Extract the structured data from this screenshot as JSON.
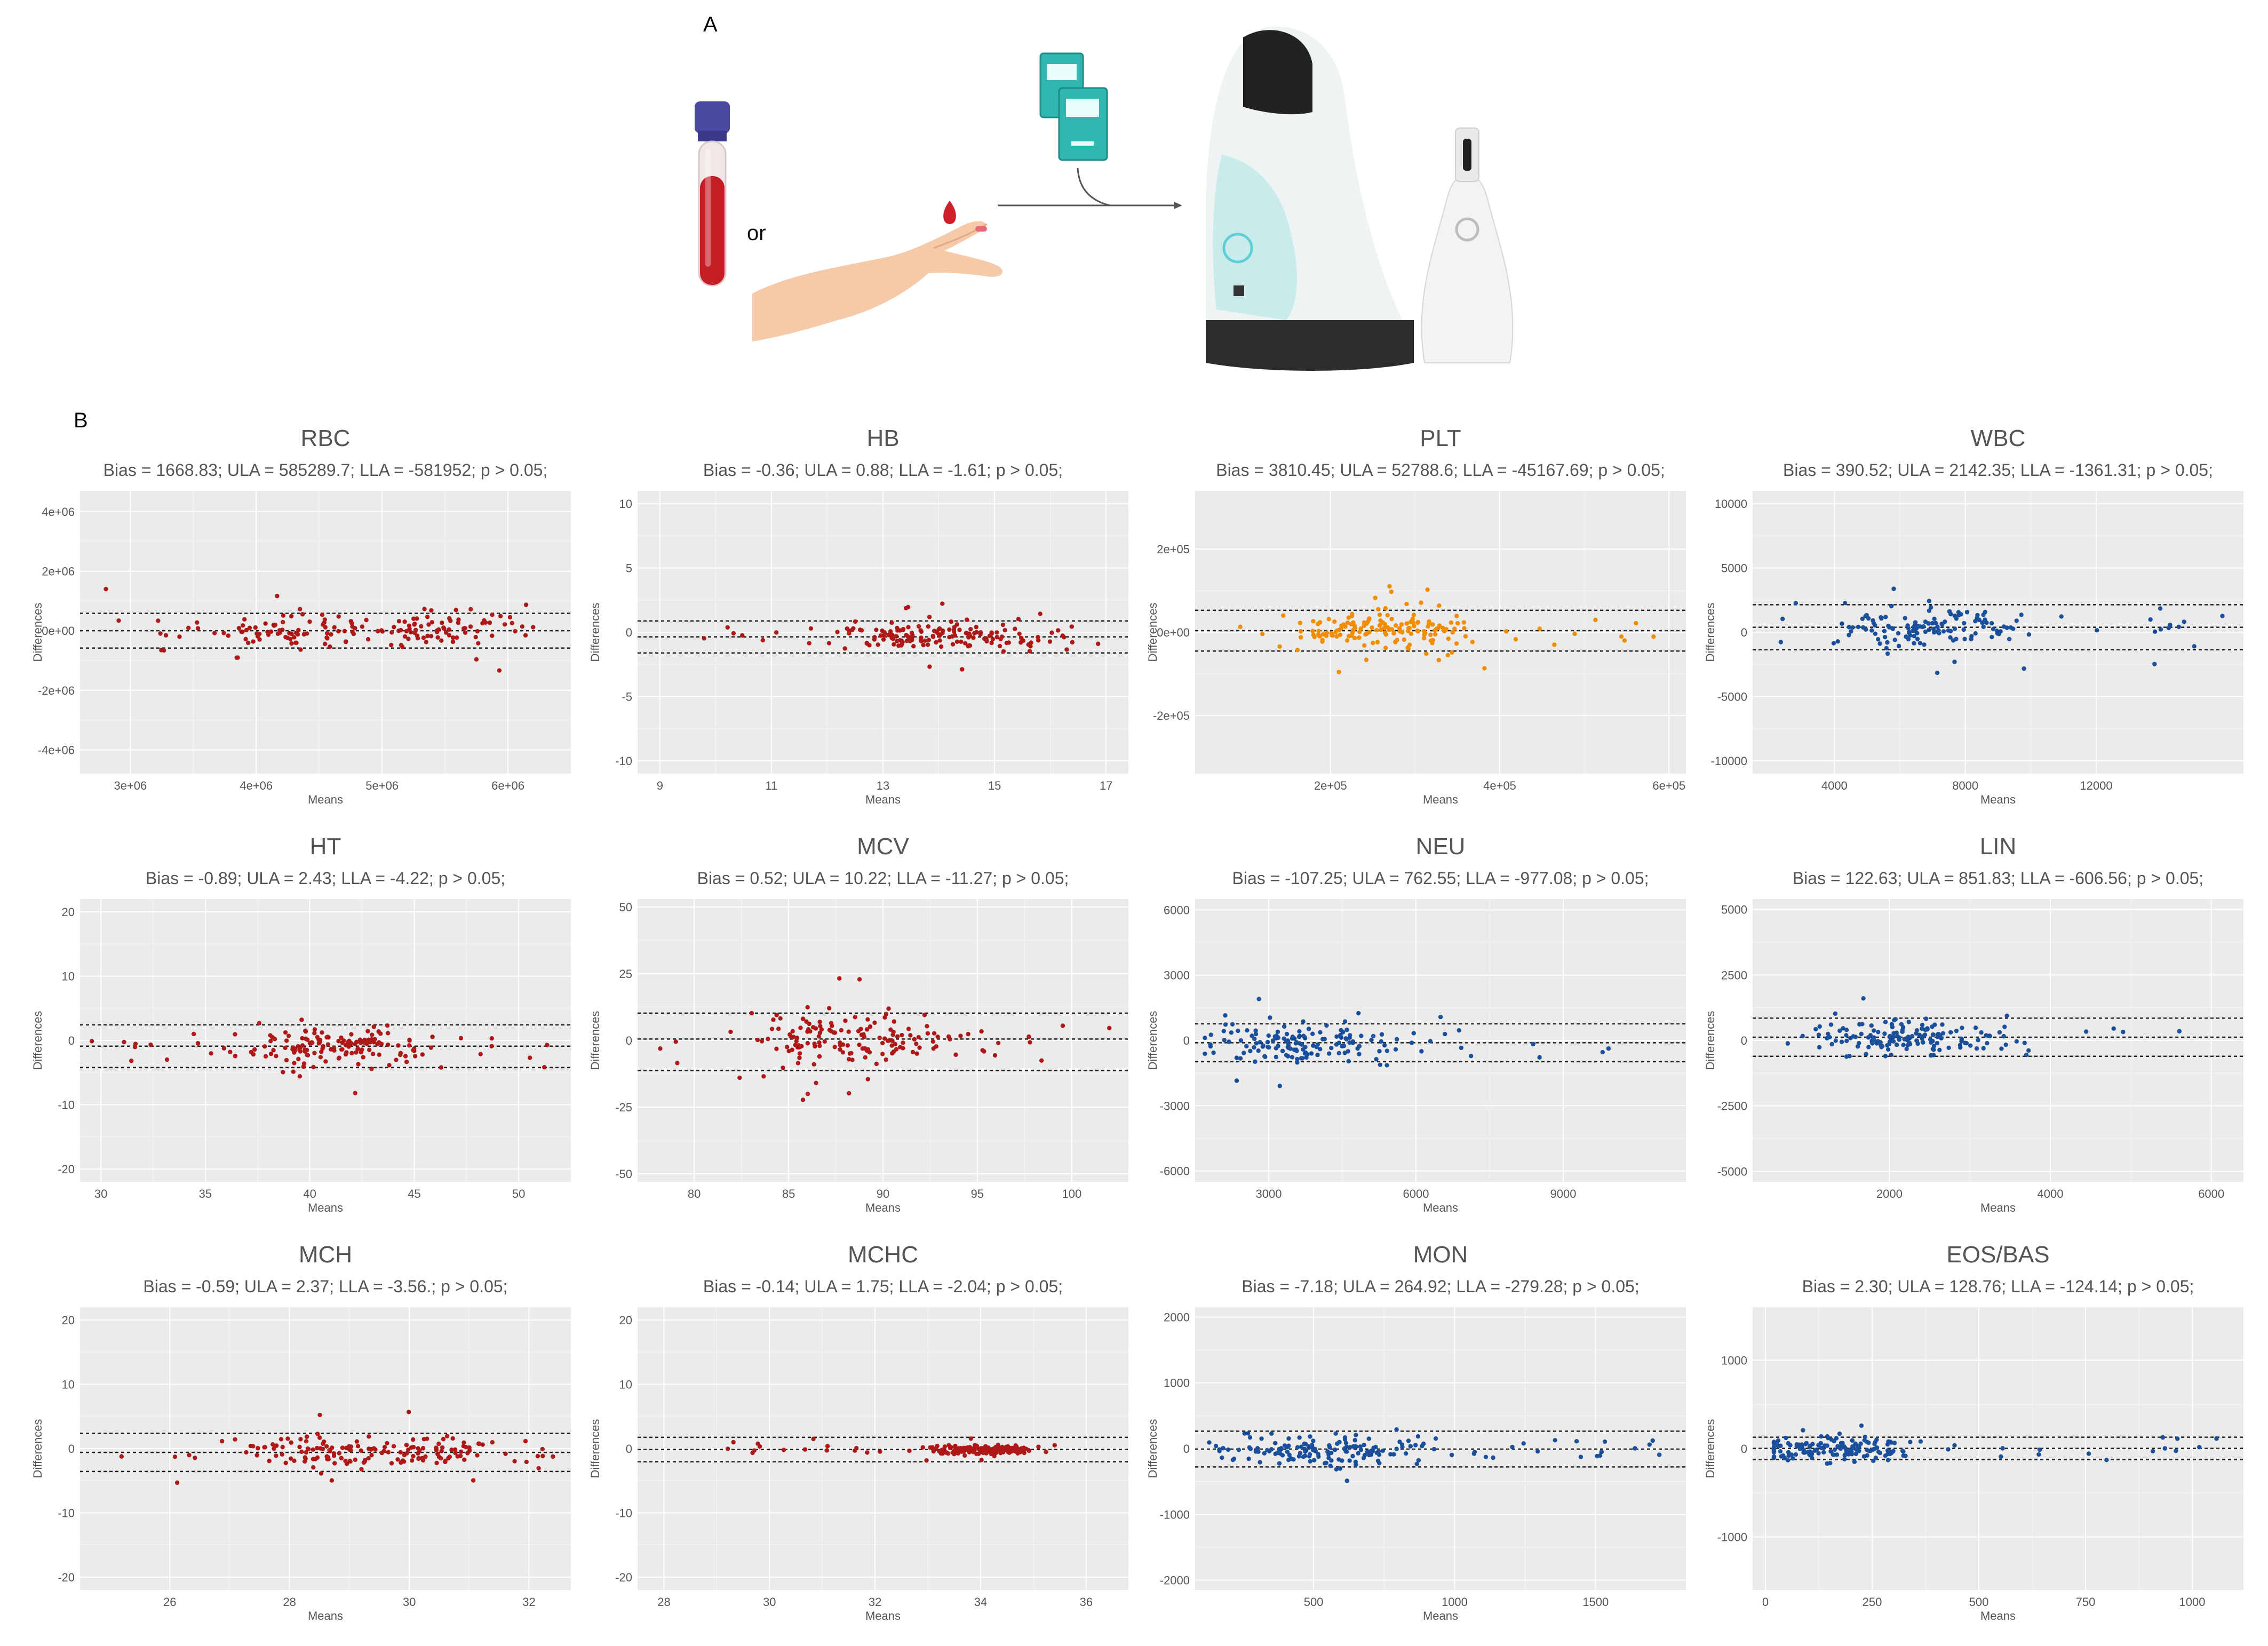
{
  "figure": {
    "label_a": "A",
    "label_b": "B",
    "or_text": "or"
  },
  "colors": {
    "red": "#b01818",
    "orange": "#f28c00",
    "blue": "#1a4f9c",
    "panel_bg": "#ebebeb",
    "grid": "#ffffff"
  },
  "chart_data": [
    {
      "name": "RBC",
      "type": "scatter",
      "title": "RBC",
      "stats": "Bias = 1668.83; ULA = 585289.7; LLA = -581952; p > 0.05;",
      "xlabel": "Means",
      "ylabel": "Differences",
      "color": "red",
      "xlim": [
        2600000,
        6500000
      ],
      "ylim": [
        -4800000,
        4700000
      ],
      "xticks": [
        3000000,
        4000000,
        5000000,
        6000000
      ],
      "xtick_labels": [
        "3e+06",
        "4e+06",
        "5e+06",
        "6e+06"
      ],
      "yticks": [
        -4000000,
        -2000000,
        0,
        2000000,
        4000000
      ],
      "ytick_labels": [
        "-4e+06",
        "-2e+06",
        "0e+00",
        "2e+06",
        "4e+06"
      ],
      "hlines": [
        585289.7,
        1668.83,
        -581952
      ],
      "gen": {
        "seed": 11,
        "n": 170,
        "cx": [
          4300000,
          5500000
        ],
        "sx": 650000,
        "sy": 290000,
        "min_x": 2700000,
        "max_x": 6200000
      }
    },
    {
      "name": "HB",
      "type": "scatter",
      "title": "HB",
      "stats": "Bias = -0.36; ULA = 0.88; LLA = -1.61; p > 0.05;",
      "xlabel": "Means",
      "ylabel": "Differences",
      "color": "red",
      "xlim": [
        8.6,
        17.4
      ],
      "ylim": [
        -11,
        11
      ],
      "xticks": [
        9,
        11,
        13,
        15,
        17
      ],
      "xtick_labels": [
        "9",
        "11",
        "13",
        "15",
        "17"
      ],
      "yticks": [
        -10,
        -5,
        0,
        5,
        10
      ],
      "ytick_labels": [
        "-10",
        "-5",
        "0",
        "5",
        "10"
      ],
      "hlines": [
        0.88,
        -0.36,
        -1.61
      ],
      "gen": {
        "seed": 23,
        "n": 170,
        "cx": [
          13.2,
          14.8
        ],
        "sx": 1.1,
        "sy": 0.55,
        "min_x": 9.0,
        "max_x": 16.9
      }
    },
    {
      "name": "PLT",
      "type": "scatter",
      "title": "PLT",
      "stats": "Bias = 3810.45; ULA = 52788.6; LLA = -45167.69; p > 0.05;",
      "xlabel": "Means",
      "ylabel": "Differences",
      "color": "orange",
      "xlim": [
        40000,
        620000
      ],
      "ylim": [
        -340000,
        340000
      ],
      "xticks": [
        200000,
        400000,
        600000
      ],
      "xtick_labels": [
        "2e+05",
        "4e+05",
        "6e+05"
      ],
      "yticks": [
        -200000,
        0,
        200000
      ],
      "ytick_labels": [
        "-2e+05",
        "0e+00",
        "2e+05"
      ],
      "hlines": [
        52788.6,
        3810.45,
        -45167.69
      ],
      "gen": {
        "seed": 37,
        "n": 170,
        "cx": [
          230000,
          300000
        ],
        "sx": 65000,
        "sy": 22000,
        "min_x": 80000,
        "max_x": 600000
      }
    },
    {
      "name": "WBC",
      "type": "scatter",
      "title": "WBC",
      "stats": "Bias = 390.52; ULA = 2142.35; LLA = -1361.31; p > 0.05;",
      "xlabel": "Means",
      "ylabel": "Differences",
      "color": "blue",
      "xlim": [
        1500,
        16500
      ],
      "ylim": [
        -11000,
        11000
      ],
      "xticks": [
        4000,
        8000,
        12000
      ],
      "xtick_labels": [
        "4000",
        "8000",
        "12000"
      ],
      "yticks": [
        -10000,
        -5000,
        0,
        5000,
        10000
      ],
      "ytick_labels": [
        "-10000",
        "-5000",
        "0",
        "5000",
        "10000"
      ],
      "hlines": [
        2142.35,
        390.52,
        -1361.31
      ],
      "gen": {
        "seed": 41,
        "n": 150,
        "cx": [
          5800,
          7800
        ],
        "sx": 2000,
        "sy": 800,
        "min_x": 2300,
        "max_x": 16000
      }
    },
    {
      "name": "HT",
      "type": "scatter",
      "title": "HT",
      "stats": "Bias = -0.89; ULA = 2.43; LLA = -4.22; p > 0.05;",
      "xlabel": "Means",
      "ylabel": "Differences",
      "color": "red",
      "xlim": [
        29,
        52.5
      ],
      "ylim": [
        -22,
        22
      ],
      "xticks": [
        30,
        35,
        40,
        45,
        50
      ],
      "xtick_labels": [
        "30",
        "35",
        "40",
        "45",
        "50"
      ],
      "yticks": [
        -20,
        -10,
        0,
        10,
        20
      ],
      "ytick_labels": [
        "-20",
        "-10",
        "0",
        "10",
        "20"
      ],
      "hlines": [
        2.43,
        -0.89,
        -4.22
      ],
      "gen": {
        "seed": 53,
        "n": 170,
        "cx": [
          39.5,
          42.5
        ],
        "sx": 2.6,
        "sy": 1.5,
        "min_x": 29.5,
        "max_x": 52
      }
    },
    {
      "name": "MCV",
      "type": "scatter",
      "title": "MCV",
      "stats": "Bias = 0.52; ULA = 10.22; LLA = -11.27; p > 0.05;",
      "xlabel": "Means",
      "ylabel": "Differences",
      "color": "red",
      "xlim": [
        77,
        103
      ],
      "ylim": [
        -53,
        53
      ],
      "xticks": [
        80,
        85,
        90,
        95,
        100
      ],
      "xtick_labels": [
        "80",
        "85",
        "90",
        "95",
        "100"
      ],
      "yticks": [
        -50,
        -25,
        0,
        25,
        50
      ],
      "ytick_labels": [
        "-50",
        "-25",
        "0",
        "25",
        "50"
      ],
      "hlines": [
        10.22,
        0.52,
        -11.27
      ],
      "gen": {
        "seed": 67,
        "n": 160,
        "cx": [
          86,
          90
        ],
        "sx": 3.3,
        "sy": 5.0,
        "min_x": 78,
        "max_x": 102
      }
    },
    {
      "name": "NEU",
      "type": "scatter",
      "title": "NEU",
      "stats": "Bias = -107.25; ULA = 762.55; LLA = -977.08; p > 0.05;",
      "xlabel": "Means",
      "ylabel": "Differences",
      "color": "blue",
      "xlim": [
        1500,
        11500
      ],
      "ylim": [
        -6500,
        6500
      ],
      "xticks": [
        3000,
        6000,
        9000
      ],
      "xtick_labels": [
        "3000",
        "6000",
        "9000"
      ],
      "yticks": [
        -6000,
        -3000,
        0,
        3000,
        6000
      ],
      "ytick_labels": [
        "-6000",
        "-3000",
        "0",
        "3000",
        "6000"
      ],
      "hlines": [
        762.55,
        -107.25,
        -977.08
      ],
      "gen": {
        "seed": 71,
        "n": 160,
        "cx": [
          3000,
          4200
        ],
        "sx": 1300,
        "sy": 430,
        "min_x": 1700,
        "max_x": 11000
      }
    },
    {
      "name": "LIN",
      "type": "scatter",
      "title": "LIN",
      "stats": "Bias = 122.63; ULA = 851.83; LLA = -606.56; p > 0.05;",
      "xlabel": "Means",
      "ylabel": "Differences",
      "color": "blue",
      "xlim": [
        300,
        6400
      ],
      "ylim": [
        -5400,
        5400
      ],
      "xticks": [
        2000,
        4000,
        6000
      ],
      "xtick_labels": [
        "2000",
        "4000",
        "6000"
      ],
      "yticks": [
        -5000,
        -2500,
        0,
        2500,
        5000
      ],
      "ytick_labels": [
        "-5000",
        "-2500",
        "0",
        "2500",
        "5000"
      ],
      "hlines": [
        851.83,
        122.63,
        -606.56
      ],
      "gen": {
        "seed": 83,
        "n": 160,
        "cx": [
          1800,
          2600
        ],
        "sx": 750,
        "sy": 360,
        "min_x": 600,
        "max_x": 6100
      }
    },
    {
      "name": "MCH",
      "type": "scatter",
      "title": "MCH",
      "stats": "Bias = -0.59; ULA = 2.37; LLA = -3.56.; p > 0.05;",
      "xlabel": "Means",
      "ylabel": "Differences",
      "color": "red",
      "xlim": [
        24.5,
        32.7
      ],
      "ylim": [
        -22,
        22
      ],
      "xticks": [
        26,
        28,
        30,
        32
      ],
      "xtick_labels": [
        "26",
        "28",
        "30",
        "32"
      ],
      "yticks": [
        -20,
        -10,
        0,
        10,
        20
      ],
      "ytick_labels": [
        "-20",
        "-10",
        "0",
        "10",
        "20"
      ],
      "hlines": [
        2.37,
        -0.59,
        -3.56
      ],
      "gen": {
        "seed": 97,
        "n": 170,
        "cx": [
          28.5,
          30.3
        ],
        "sx": 1.1,
        "sy": 1.3,
        "min_x": 24.8,
        "max_x": 32.4
      }
    },
    {
      "name": "MCHC",
      "type": "scatter",
      "title": "MCHC",
      "stats": "Bias = -0.14; ULA = 1.75; LLA = -2.04; p > 0.05;",
      "xlabel": "Means",
      "ylabel": "Differences",
      "color": "red",
      "xlim": [
        27.5,
        36.8
      ],
      "ylim": [
        -22,
        22
      ],
      "xticks": [
        28,
        30,
        32,
        34,
        36
      ],
      "xtick_labels": [
        "28",
        "30",
        "32",
        "34",
        "36"
      ],
      "yticks": [
        -20,
        -10,
        0,
        10,
        20
      ],
      "ytick_labels": [
        "-20",
        "-10",
        "0",
        "10",
        "20"
      ],
      "hlines": [
        1.75,
        -0.14,
        -2.04
      ],
      "gen": {
        "seed": 101,
        "n": 170,
        "cx": [
          33.6,
          34.4
        ],
        "sx": 0.55,
        "sy": 0.35,
        "min_x": 28,
        "max_x": 36.3
      }
    },
    {
      "name": "MON",
      "type": "scatter",
      "title": "MON",
      "stats": "Bias = -7.18; ULA = 264.92; LLA = -279.28; p > 0.05;",
      "xlabel": "Means",
      "ylabel": "Differences",
      "color": "blue",
      "xlim": [
        80,
        1820
      ],
      "ylim": [
        -2150,
        2150
      ],
      "xticks": [
        500,
        1000,
        1500
      ],
      "xtick_labels": [
        "500",
        "1000",
        "1500"
      ],
      "yticks": [
        -2000,
        -1000,
        0,
        1000,
        2000
      ],
      "ytick_labels": [
        "-2000",
        "-1000",
        "0",
        "1000",
        "2000"
      ],
      "hlines": [
        264.92,
        -7.18,
        -279.28
      ],
      "gen": {
        "seed": 113,
        "n": 170,
        "cx": [
          440,
          650
        ],
        "sx": 260,
        "sy": 120,
        "min_x": 130,
        "max_x": 1750
      }
    },
    {
      "name": "EOS/BAS",
      "type": "scatter",
      "title": "EOS/BAS",
      "stats": "Bias = 2.30; ULA = 128.76; LLA = -124.14; p > 0.05;",
      "xlabel": "Means",
      "ylabel": "Differences",
      "color": "blue",
      "xlim": [
        -30,
        1120
      ],
      "ylim": [
        -1600,
        1600
      ],
      "xticks": [
        0,
        250,
        500,
        750,
        1000
      ],
      "xtick_labels": [
        "0",
        "250",
        "500",
        "750",
        "1000"
      ],
      "yticks": [
        -1000,
        0,
        1000
      ],
      "ytick_labels": [
        "-1000",
        "0",
        "1000"
      ],
      "hlines": [
        128.76,
        2.3,
        -124.14
      ],
      "gen": {
        "seed": 127,
        "n": 170,
        "cx": [
          90,
          230
        ],
        "sx": 140,
        "sy": 70,
        "min_x": 20,
        "max_x": 1060
      }
    }
  ]
}
